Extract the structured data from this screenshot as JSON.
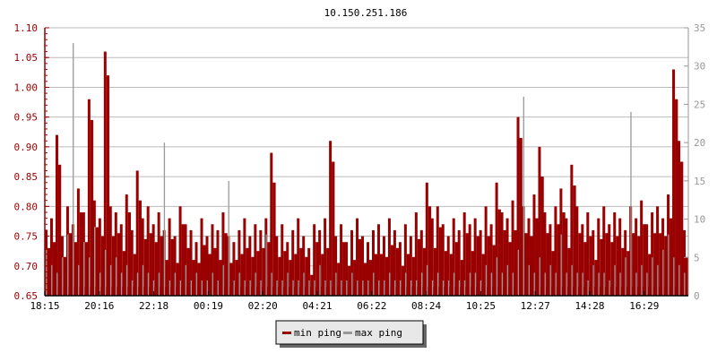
{
  "chart_data": {
    "type": "bar",
    "title": "10.150.251.186",
    "x_ticks": [
      "18:15",
      "20:16",
      "22:18",
      "00:19",
      "02:20",
      "04:21",
      "06:22",
      "08:24",
      "10:25",
      "12:27",
      "14:28",
      "16:29"
    ],
    "y_left": {
      "ylim": [
        0.65,
        1.1
      ],
      "ticks": [
        "0.65",
        "0.70",
        "0.75",
        "0.80",
        "0.85",
        "0.90",
        "0.95",
        "1.00",
        "1.05",
        "1.10"
      ],
      "color": "#990000"
    },
    "y_right": {
      "ylim": [
        0,
        35
      ],
      "ticks": [
        "0",
        "5",
        "10",
        "15",
        "20",
        "25",
        "30",
        "35"
      ],
      "color": "#999999"
    },
    "grid": true,
    "legend_placement": "bottom",
    "series": [
      {
        "name": "min ping",
        "axis": "left",
        "color": "#990000",
        "values": [
          0.76,
          0.78,
          0.92,
          0.75,
          0.8,
          0.77,
          0.83,
          0.79,
          0.98,
          0.81,
          0.78,
          1.06,
          0.8,
          0.79,
          0.77,
          0.82,
          0.76,
          0.86,
          0.78,
          0.8,
          0.77,
          0.79,
          0.76,
          0.78,
          0.75,
          0.8,
          0.77,
          0.76,
          0.74,
          0.78,
          0.75,
          0.77,
          0.76,
          0.79,
          0.75,
          0.74,
          0.76,
          0.78,
          0.75,
          0.77,
          0.76,
          0.78,
          0.89,
          0.75,
          0.77,
          0.74,
          0.76,
          0.78,
          0.75,
          0.73,
          0.77,
          0.76,
          0.78,
          0.91,
          0.75,
          0.77,
          0.74,
          0.76,
          0.78,
          0.75,
          0.74,
          0.76,
          0.77,
          0.75,
          0.78,
          0.76,
          0.74,
          0.77,
          0.75,
          0.79,
          0.76,
          0.84,
          0.78,
          0.8,
          0.77,
          0.75,
          0.78,
          0.76,
          0.79,
          0.77,
          0.78,
          0.76,
          0.8,
          0.77,
          0.84,
          0.79,
          0.78,
          0.81,
          0.95,
          0.8,
          0.78,
          0.82,
          0.9,
          0.79,
          0.77,
          0.8,
          0.83,
          0.78,
          0.87,
          0.8,
          0.77,
          0.79,
          0.76,
          0.78,
          0.8,
          0.77,
          0.79,
          0.78,
          0.76,
          0.8,
          0.78,
          0.81,
          0.77,
          0.79,
          0.8,
          0.78,
          0.82,
          1.03,
          0.91,
          0.76
        ]
      },
      {
        "name": "max ping",
        "axis": "right",
        "color": "#999999",
        "values": [
          6,
          4,
          3,
          5,
          8,
          33,
          4,
          7,
          5,
          9,
          3,
          6,
          4,
          5,
          3,
          4,
          2,
          3,
          4,
          3,
          2,
          3,
          20,
          2,
          3,
          2,
          4,
          2,
          3,
          2,
          2,
          3,
          2,
          4,
          15,
          2,
          3,
          2,
          2,
          3,
          2,
          8,
          3,
          2,
          2,
          3,
          2,
          2,
          3,
          2,
          2,
          4,
          2,
          2,
          3,
          2,
          2,
          3,
          2,
          2,
          2,
          3,
          2,
          2,
          3,
          2,
          2,
          3,
          2,
          2,
          3,
          4,
          2,
          3,
          2,
          2,
          3,
          2,
          2,
          3,
          3,
          2,
          4,
          3,
          5,
          3,
          4,
          3,
          6,
          26,
          4,
          3,
          5,
          3,
          4,
          3,
          8,
          3,
          4,
          3,
          3,
          2,
          4,
          3,
          3,
          2,
          4,
          3,
          5,
          24,
          3,
          4,
          3,
          5,
          4,
          6,
          8,
          5,
          4,
          3
        ]
      }
    ]
  }
}
